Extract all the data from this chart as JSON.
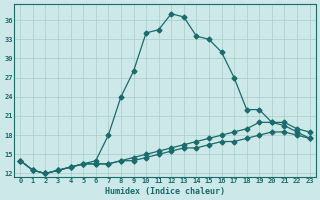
{
  "xlabel": "Humidex (Indice chaleur)",
  "ylabel": "",
  "bg_color": "#cde8e8",
  "grid_color": "#aacccc",
  "line_color": "#1a6b6b",
  "xlim": [
    -0.5,
    23.5
  ],
  "ylim": [
    11.5,
    38.5
  ],
  "xticks": [
    0,
    1,
    2,
    3,
    4,
    5,
    6,
    7,
    8,
    9,
    10,
    11,
    12,
    13,
    14,
    15,
    16,
    17,
    18,
    19,
    20,
    21,
    22,
    23
  ],
  "yticks": [
    12,
    15,
    18,
    21,
    24,
    27,
    30,
    33,
    36
  ],
  "curve1_x": [
    0,
    1,
    2,
    3,
    4,
    5,
    6,
    7,
    8,
    9,
    10,
    11,
    12,
    13,
    14,
    15,
    16,
    17,
    18,
    19,
    20,
    21,
    22,
    23
  ],
  "curve1_y": [
    14,
    12.5,
    12,
    12.5,
    13,
    13.5,
    14,
    18,
    24,
    28,
    34,
    34.5,
    37,
    36.5,
    33.5,
    33,
    31,
    27,
    22,
    22,
    20,
    19.5,
    18.5,
    17.5
  ],
  "curve2_x": [
    0,
    1,
    2,
    3,
    4,
    5,
    6,
    7,
    8,
    9,
    10,
    11,
    12,
    13,
    14,
    15,
    16,
    17,
    18,
    19,
    20,
    21,
    22,
    23
  ],
  "curve2_y": [
    14,
    12.5,
    12,
    12.5,
    13,
    13.5,
    13.5,
    13.5,
    14,
    14.5,
    15,
    15.5,
    16,
    16.5,
    17,
    17.5,
    18,
    18.5,
    19,
    20,
    20,
    20,
    19,
    18.5
  ],
  "curve3_x": [
    0,
    1,
    2,
    3,
    4,
    5,
    6,
    7,
    8,
    9,
    10,
    11,
    12,
    13,
    14,
    15,
    16,
    17,
    18,
    19,
    20,
    21,
    22,
    23
  ],
  "curve3_y": [
    14,
    12.5,
    12,
    12.5,
    13,
    13.5,
    13.5,
    13.5,
    14,
    14,
    14.5,
    15,
    15.5,
    16,
    16,
    16.5,
    17,
    17,
    17.5,
    18,
    18.5,
    18.5,
    18,
    17.5
  ]
}
